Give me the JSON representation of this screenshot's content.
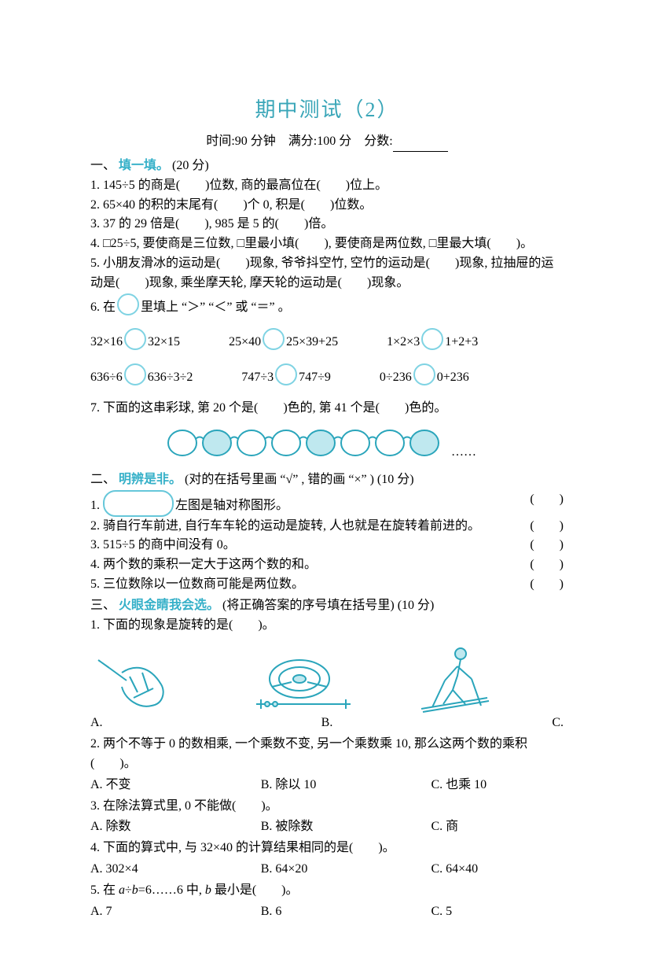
{
  "title": "期中测试（2）",
  "meta": {
    "time_label": "时间:90 分钟",
    "full_label": "满分:100 分",
    "score_label": "分数:"
  },
  "s1": {
    "head_prefix": "一、",
    "head_accent": "填一填。",
    "head_suffix": "(20 分)",
    "q1": "1. 145÷5 的商是(　　)位数, 商的最高位在(　　)位上。",
    "q2": "2. 65×40 的积的末尾有(　　)个 0, 积是(　　)位数。",
    "q3": "3. 37 的 29 倍是(　　), 985 是 5 的(　　)倍。",
    "q4": "4. □25÷5, 要使商是三位数, □里最小填(　　), 要使商是两位数, □里最大填(　　)。",
    "q5": "5. 小朋友滑冰的运动是(　　)现象, 爷爷抖空竹, 空竹的运动是(　　)现象, 拉抽屉的运动是(　　)现象, 乘坐摩天轮, 摩天轮的运动是(　　)现象。",
    "q6_head": "6. 在　　里填上 “＞” “＜” 或 “＝” 。",
    "q6_rows": [
      [
        {
          "l": "32×16",
          "r": "32×15"
        },
        {
          "l": "25×40",
          "r": "25×39+25"
        },
        {
          "l": "1×2×3",
          "r": "1+2+3"
        }
      ],
      [
        {
          "l": "636÷6",
          "r": "636÷3÷2"
        },
        {
          "l": "747÷3",
          "r": "747÷9"
        },
        {
          "l": "0÷236",
          "r": "0+236"
        }
      ]
    ],
    "q7": "7. 下面的这串彩球, 第 20 个是(　　)色的, 第 41 个是(　　)色的。",
    "beads": {
      "count": 8,
      "filled_indices": [
        1,
        4,
        7
      ],
      "radius": 20,
      "fill_color": "#bfe8ef",
      "stroke_color": "#2aa5bb",
      "line_color": "#2aa5bb",
      "ellipsis": "……"
    }
  },
  "s2": {
    "head_prefix": "二、",
    "head_accent": "明辨是非。",
    "head_suffix": "(对的在括号里画 “√” , 错的画 “×” ) (10 分)",
    "q1_suffix": "左图是轴对称图形。",
    "rows": [
      "2. 骑自行车前进, 自行车车轮的运动是旋转, 人也就是在旋转着前进的。",
      "3. 515÷5 的商中间没有 0。",
      "4. 两个数的乘积一定大于这两个数的和。",
      "5. 三位数除以一位数商可能是两位数。"
    ],
    "paren_unit": "(　　)"
  },
  "s3": {
    "head_prefix": "三、",
    "head_accent": "火眼金睛我会选。",
    "head_suffix": "(将正确答案的序号填在括号里) (10 分)",
    "q1": "1. 下面的现象是旋转的是(　　)。",
    "q1_opts": {
      "A": "A.",
      "B": "B.",
      "C": "C."
    },
    "q2": "2. 两个不等于 0 的数相乘, 一个乘数不变, 另一个乘数乘 10, 那么这两个数的乘积 (　　)。",
    "q2_opts": {
      "A": "A. 不变",
      "B": "B. 除以 10",
      "C": "C. 也乘 10"
    },
    "q3": "3. 在除法算式里, 0 不能做(　　)。",
    "q3_opts": {
      "A": "A. 除数",
      "B": "B. 被除数",
      "C": "C. 商"
    },
    "q4": "4. 下面的算式中, 与 32×40 的计算结果相同的是(　　)。",
    "q4_opts": {
      "A": "A. 302×4",
      "B": "B. 64×20",
      "C": "C. 64×40"
    },
    "q5_pre": "5. 在 ",
    "q5_expr_a": "a",
    "q5_mid1": "÷",
    "q5_expr_b": "b",
    "q5_mid2": "=6……6 中, ",
    "q5_expr_b2": "b",
    "q5_post": " 最小是(　　)。",
    "q5_opts": {
      "A": "A. 7",
      "B": "B. 6",
      "C": "C. 5"
    }
  },
  "colors": {
    "accent": "#35b0c8",
    "title": "#3aa6b8",
    "bead_stroke": "#2aa5bb",
    "bead_fill": "#bfe8ef",
    "capsule": "#66c7da"
  }
}
